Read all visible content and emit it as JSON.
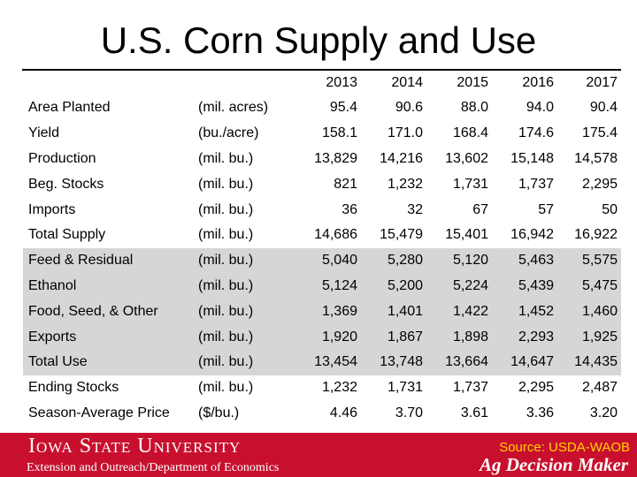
{
  "title": "U.S. Corn Supply and Use",
  "years": [
    "2013",
    "2014",
    "2015",
    "2016",
    "2017"
  ],
  "rows": [
    {
      "label": "Area Planted",
      "unit": "(mil. acres)",
      "values": [
        "95.4",
        "90.6",
        "88.0",
        "94.0",
        "90.4"
      ],
      "shaded": false
    },
    {
      "label": "Yield",
      "unit": "(bu./acre)",
      "values": [
        "158.1",
        "171.0",
        "168.4",
        "174.6",
        "175.4"
      ],
      "shaded": false
    },
    {
      "label": "Production",
      "unit": "(mil. bu.)",
      "values": [
        "13,829",
        "14,216",
        "13,602",
        "15,148",
        "14,578"
      ],
      "shaded": false
    },
    {
      "label": "Beg. Stocks",
      "unit": "(mil. bu.)",
      "values": [
        "821",
        "1,232",
        "1,731",
        "1,737",
        "2,295"
      ],
      "shaded": false
    },
    {
      "label": "Imports",
      "unit": "(mil. bu.)",
      "values": [
        "36",
        "32",
        "67",
        "57",
        "50"
      ],
      "shaded": false
    },
    {
      "label": "Total Supply",
      "unit": "(mil. bu.)",
      "values": [
        "14,686",
        "15,479",
        "15,401",
        "16,942",
        "16,922"
      ],
      "shaded": false
    },
    {
      "label": "Feed & Residual",
      "unit": "(mil. bu.)",
      "values": [
        "5,040",
        "5,280",
        "5,120",
        "5,463",
        "5,575"
      ],
      "shaded": true
    },
    {
      "label": "Ethanol",
      "unit": "(mil. bu.)",
      "values": [
        "5,124",
        "5,200",
        "5,224",
        "5,439",
        "5,475"
      ],
      "shaded": true
    },
    {
      "label": "Food, Seed, & Other",
      "unit": "(mil. bu.)",
      "values": [
        "1,369",
        "1,401",
        "1,422",
        "1,452",
        "1,460"
      ],
      "shaded": true
    },
    {
      "label": "Exports",
      "unit": "(mil. bu.)",
      "values": [
        "1,920",
        "1,867",
        "1,898",
        "2,293",
        "1,925"
      ],
      "shaded": true
    },
    {
      "label": "Total Use",
      "unit": "(mil. bu.)",
      "values": [
        "13,454",
        "13,748",
        "13,664",
        "14,647",
        "14,435"
      ],
      "shaded": true
    },
    {
      "label": "Ending Stocks",
      "unit": "(mil. bu.)",
      "values": [
        "1,232",
        "1,731",
        "1,737",
        "2,295",
        "2,487"
      ],
      "shaded": false
    },
    {
      "label": "Season-Average Price",
      "unit": "($/bu.)",
      "values": [
        "4.46",
        "3.70",
        "3.61",
        "3.36",
        "3.20"
      ],
      "shaded": false
    }
  ],
  "footer": {
    "logo": "Iowa State University",
    "department": "Extension and Outreach/Department of Economics",
    "source": "Source: USDA-WAOB",
    "brand": "Ag Decision Maker"
  },
  "colors": {
    "footer_bg": "#c8102e",
    "source_text": "#ffd200",
    "use_shading": "#d6d6d6"
  }
}
